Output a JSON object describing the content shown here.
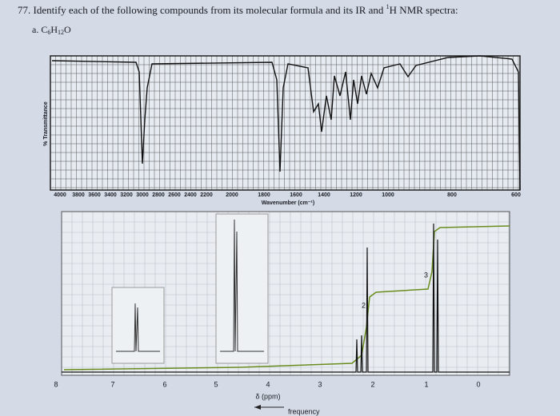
{
  "question": {
    "number": "77.",
    "text": "Identify each of the following compounds from its molecular formula and its IR and",
    "sup": "1",
    "text_end": "H NMR spectra:"
  },
  "part": {
    "label": "a.",
    "formula": [
      "C",
      "6",
      "H",
      "12",
      "O"
    ]
  },
  "ir": {
    "y_label": "% Transmittance",
    "x_label": "Wavenumber (cm⁻¹)",
    "ticks": [
      "4000",
      "3800",
      "3600",
      "3400",
      "3200",
      "3000",
      "2800",
      "2600",
      "2400",
      "2200",
      "2000",
      "1800",
      "1600",
      "1400",
      "1200",
      "1000",
      "800",
      "600"
    ]
  },
  "nmr": {
    "ticks": [
      "8",
      "7",
      "6",
      "5",
      "4",
      "3",
      "2",
      "1",
      "0"
    ],
    "x_label": "δ (ppm)",
    "direction_label": "frequency",
    "integrations": [
      "2",
      "3"
    ]
  }
}
